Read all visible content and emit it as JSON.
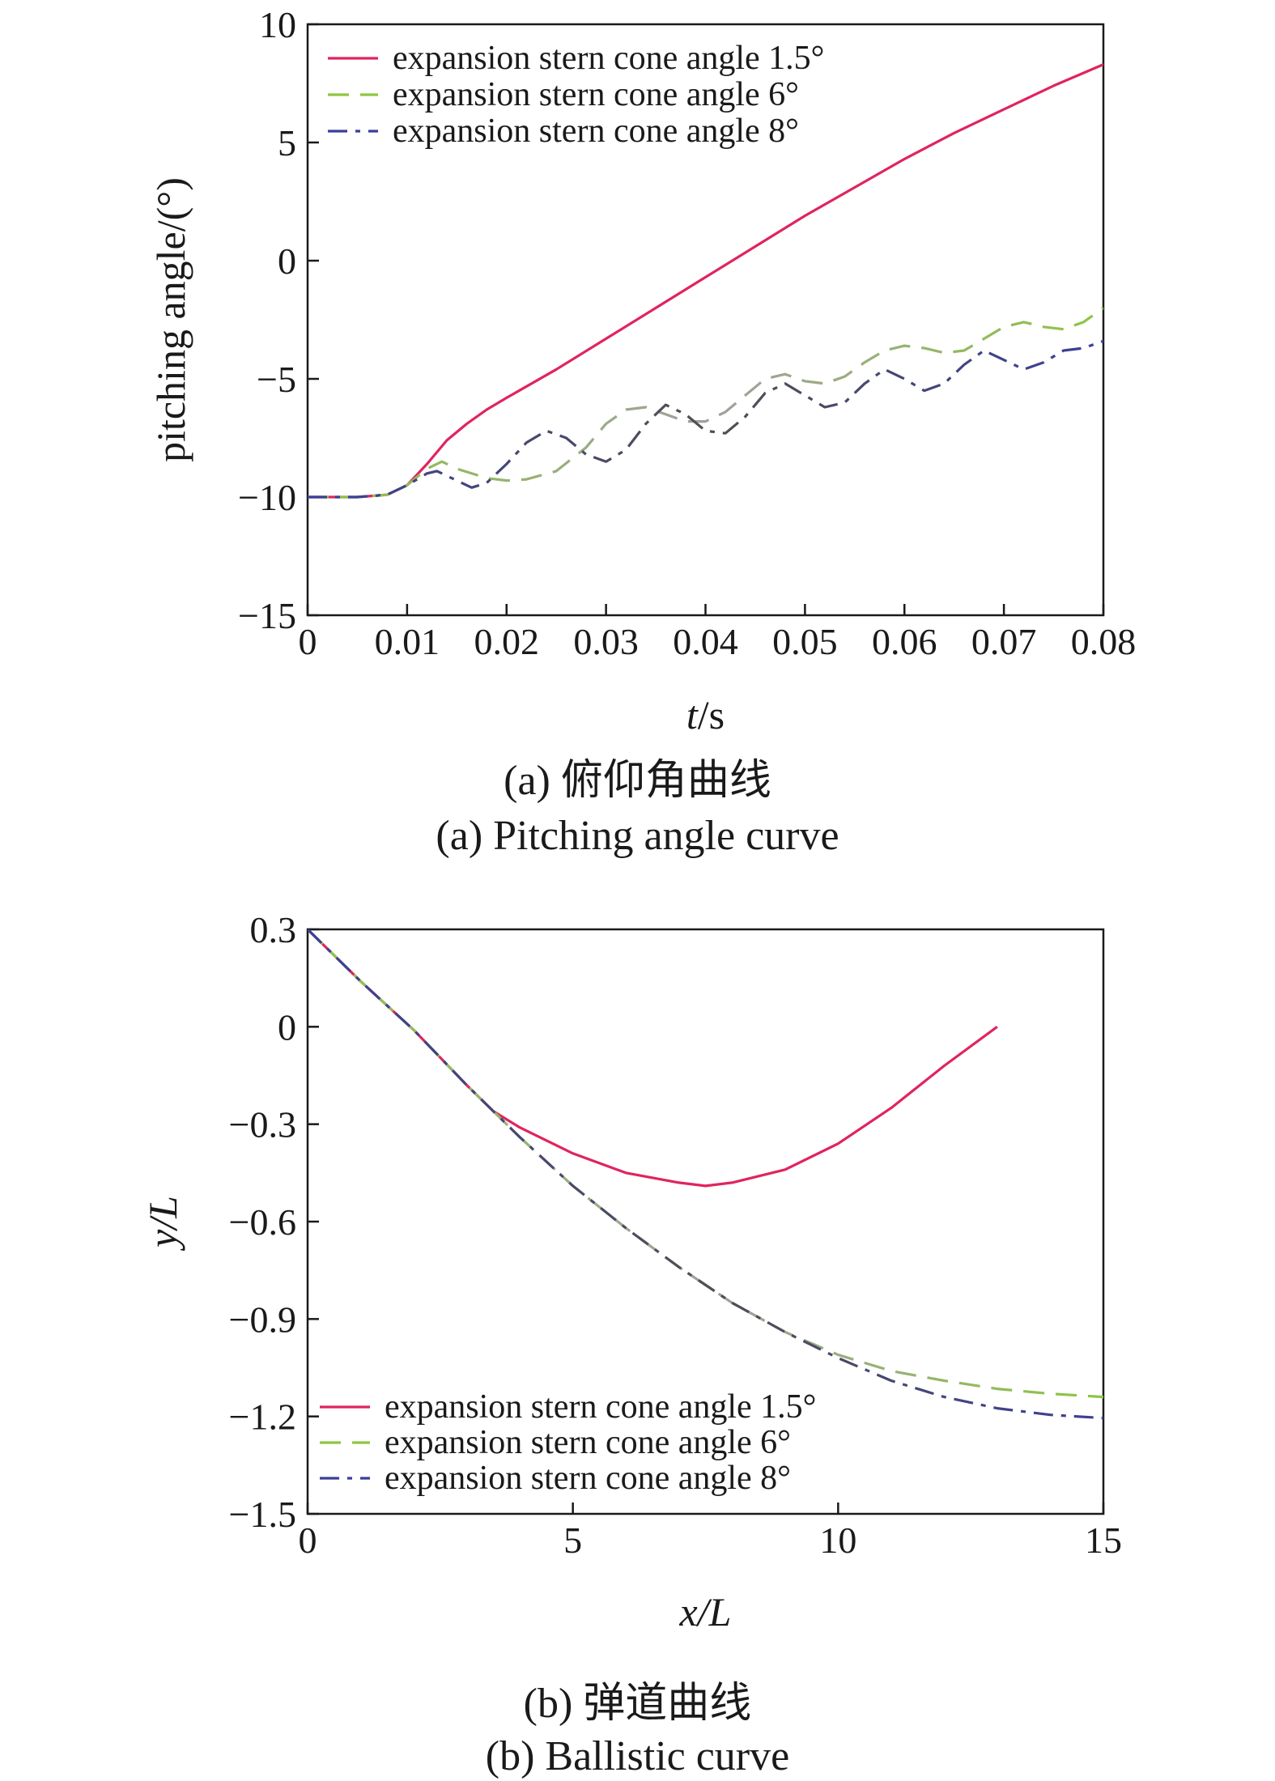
{
  "chart_data": [
    {
      "id": "a",
      "type": "line",
      "caption_cn": "(a) 俯仰角曲线",
      "caption_en": "(a) Pitching angle curve",
      "xlabel_var": "t",
      "xlabel_unit": "/s",
      "ylabel": "pitching angle/(°)",
      "xlim": [
        0,
        0.08
      ],
      "ylim": [
        -15,
        10
      ],
      "x_ticks": [
        0,
        0.01,
        0.02,
        0.03,
        0.04,
        0.05,
        0.06,
        0.07,
        0.08
      ],
      "x_tick_labels": [
        "0",
        "0.01",
        "0.02",
        "0.03",
        "0.04",
        "0.05",
        "0.06",
        "0.07",
        "0.08"
      ],
      "y_ticks": [
        -15,
        -10,
        -5,
        0,
        5,
        10
      ],
      "y_tick_labels": [
        "−15",
        "−10",
        "−5",
        "0",
        "5",
        "10"
      ],
      "legend_position": "top-left",
      "series": [
        {
          "name": "expansion stern cone angle 1.5°",
          "style": "solid",
          "color": "#e0245e",
          "points": [
            [
              0,
              -10
            ],
            [
              0.005,
              -10
            ],
            [
              0.008,
              -9.9
            ],
            [
              0.01,
              -9.5
            ],
            [
              0.012,
              -8.6
            ],
            [
              0.014,
              -7.6
            ],
            [
              0.016,
              -6.9
            ],
            [
              0.018,
              -6.3
            ],
            [
              0.02,
              -5.8
            ],
            [
              0.025,
              -4.6
            ],
            [
              0.03,
              -3.3
            ],
            [
              0.035,
              -2.0
            ],
            [
              0.04,
              -0.7
            ],
            [
              0.045,
              0.6
            ],
            [
              0.05,
              1.9
            ],
            [
              0.055,
              3.1
            ],
            [
              0.06,
              4.3
            ],
            [
              0.065,
              5.4
            ],
            [
              0.07,
              6.4
            ],
            [
              0.075,
              7.4
            ],
            [
              0.08,
              8.3
            ]
          ]
        },
        {
          "name": "expansion stern cone angle 6°",
          "style": "dashed",
          "color": "#8dc63f",
          "color2": "#a0a0a0",
          "points": [
            [
              0,
              -10
            ],
            [
              0.005,
              -10
            ],
            [
              0.008,
              -9.9
            ],
            [
              0.01,
              -9.5
            ],
            [
              0.012,
              -8.8
            ],
            [
              0.0135,
              -8.5
            ],
            [
              0.015,
              -8.8
            ],
            [
              0.018,
              -9.2
            ],
            [
              0.02,
              -9.3
            ],
            [
              0.022,
              -9.25
            ],
            [
              0.025,
              -8.9
            ],
            [
              0.028,
              -7.9
            ],
            [
              0.03,
              -6.9
            ],
            [
              0.032,
              -6.3
            ],
            [
              0.034,
              -6.2
            ],
            [
              0.036,
              -6.5
            ],
            [
              0.038,
              -6.8
            ],
            [
              0.04,
              -6.8
            ],
            [
              0.042,
              -6.4
            ],
            [
              0.044,
              -5.7
            ],
            [
              0.046,
              -5.0
            ],
            [
              0.048,
              -4.8
            ],
            [
              0.05,
              -5.1
            ],
            [
              0.052,
              -5.2
            ],
            [
              0.054,
              -4.9
            ],
            [
              0.056,
              -4.3
            ],
            [
              0.058,
              -3.8
            ],
            [
              0.06,
              -3.6
            ],
            [
              0.062,
              -3.7
            ],
            [
              0.064,
              -3.9
            ],
            [
              0.066,
              -3.8
            ],
            [
              0.068,
              -3.3
            ],
            [
              0.07,
              -2.8
            ],
            [
              0.072,
              -2.6
            ],
            [
              0.074,
              -2.8
            ],
            [
              0.076,
              -2.9
            ],
            [
              0.078,
              -2.6
            ],
            [
              0.08,
              -2.0
            ]
          ]
        },
        {
          "name": "expansion stern cone angle 8°",
          "style": "dashdot",
          "color": "#3b3f99",
          "color2": "#505050",
          "points": [
            [
              0,
              -10
            ],
            [
              0.005,
              -10
            ],
            [
              0.008,
              -9.9
            ],
            [
              0.01,
              -9.5
            ],
            [
              0.012,
              -9.0
            ],
            [
              0.013,
              -8.9
            ],
            [
              0.015,
              -9.3
            ],
            [
              0.0165,
              -9.6
            ],
            [
              0.018,
              -9.4
            ],
            [
              0.02,
              -8.6
            ],
            [
              0.022,
              -7.7
            ],
            [
              0.024,
              -7.2
            ],
            [
              0.026,
              -7.5
            ],
            [
              0.028,
              -8.2
            ],
            [
              0.03,
              -8.5
            ],
            [
              0.032,
              -8.0
            ],
            [
              0.034,
              -6.9
            ],
            [
              0.036,
              -6.1
            ],
            [
              0.038,
              -6.5
            ],
            [
              0.04,
              -7.2
            ],
            [
              0.042,
              -7.3
            ],
            [
              0.044,
              -6.6
            ],
            [
              0.046,
              -5.6
            ],
            [
              0.048,
              -5.2
            ],
            [
              0.05,
              -5.7
            ],
            [
              0.052,
              -6.2
            ],
            [
              0.054,
              -6.0
            ],
            [
              0.056,
              -5.2
            ],
            [
              0.058,
              -4.6
            ],
            [
              0.06,
              -5.0
            ],
            [
              0.062,
              -5.5
            ],
            [
              0.064,
              -5.2
            ],
            [
              0.066,
              -4.4
            ],
            [
              0.068,
              -3.8
            ],
            [
              0.07,
              -4.2
            ],
            [
              0.072,
              -4.6
            ],
            [
              0.074,
              -4.3
            ],
            [
              0.076,
              -3.8
            ],
            [
              0.078,
              -3.7
            ],
            [
              0.08,
              -3.4
            ]
          ]
        }
      ]
    },
    {
      "id": "b",
      "type": "line",
      "caption_cn": "(b) 弹道曲线",
      "caption_en": "(b) Ballistic curve",
      "xlabel": "x/L",
      "ylabel": "y/L",
      "xlim": [
        0,
        15
      ],
      "ylim": [
        -1.5,
        0.3
      ],
      "x_ticks": [
        0,
        5,
        10,
        15
      ],
      "x_tick_labels": [
        "0",
        "5",
        "10",
        "15"
      ],
      "y_ticks": [
        -1.5,
        -1.2,
        -0.9,
        -0.6,
        -0.3,
        0,
        0.3
      ],
      "y_tick_labels": [
        "−1.5",
        "−1.2",
        "−0.9",
        "−0.6",
        "−0.3",
        "0",
        "0.3"
      ],
      "legend_position": "bottom-left",
      "series": [
        {
          "name": "expansion stern cone angle 1.5°",
          "style": "solid",
          "color": "#e0245e",
          "points": [
            [
              0,
              0.3
            ],
            [
              1,
              0.14
            ],
            [
              2,
              -0.01
            ],
            [
              3,
              -0.18
            ],
            [
              3.5,
              -0.26
            ],
            [
              4,
              -0.31
            ],
            [
              5,
              -0.39
            ],
            [
              6,
              -0.45
            ],
            [
              7,
              -0.48
            ],
            [
              7.5,
              -0.49
            ],
            [
              8,
              -0.48
            ],
            [
              9,
              -0.44
            ],
            [
              10,
              -0.36
            ],
            [
              11,
              -0.25
            ],
            [
              12,
              -0.12
            ],
            [
              13,
              0.0
            ]
          ]
        },
        {
          "name": "expansion stern cone angle 6°",
          "style": "dashed",
          "color": "#8dc63f",
          "color2": "#a0a0a0",
          "points": [
            [
              0,
              0.3
            ],
            [
              1,
              0.14
            ],
            [
              2,
              -0.01
            ],
            [
              3,
              -0.18
            ],
            [
              4,
              -0.34
            ],
            [
              5,
              -0.49
            ],
            [
              6,
              -0.62
            ],
            [
              7,
              -0.74
            ],
            [
              8,
              -0.85
            ],
            [
              9,
              -0.94
            ],
            [
              10,
              -1.01
            ],
            [
              11,
              -1.06
            ],
            [
              12,
              -1.09
            ],
            [
              13,
              -1.115
            ],
            [
              14,
              -1.13
            ],
            [
              15,
              -1.14
            ]
          ]
        },
        {
          "name": "expansion stern cone angle 8°",
          "style": "dashdot",
          "color": "#3b3f99",
          "color2": "#505050",
          "points": [
            [
              0,
              0.3
            ],
            [
              1,
              0.14
            ],
            [
              2,
              -0.01
            ],
            [
              3,
              -0.18
            ],
            [
              4,
              -0.34
            ],
            [
              5,
              -0.49
            ],
            [
              6,
              -0.62
            ],
            [
              7,
              -0.74
            ],
            [
              8,
              -0.85
            ],
            [
              9,
              -0.94
            ],
            [
              10,
              -1.02
            ],
            [
              11,
              -1.09
            ],
            [
              12,
              -1.14
            ],
            [
              13,
              -1.175
            ],
            [
              14,
              -1.195
            ],
            [
              15,
              -1.205
            ]
          ]
        }
      ]
    }
  ]
}
